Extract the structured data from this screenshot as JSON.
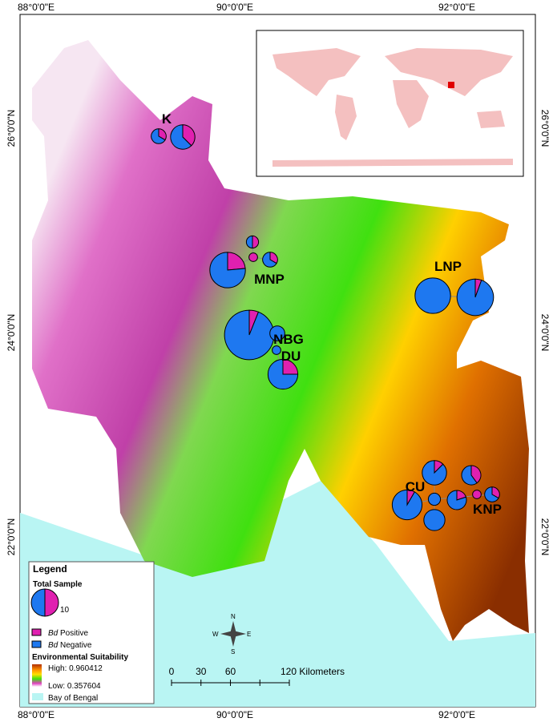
{
  "coordinates": {
    "top": [
      "88°0'0\"E",
      "90°0'0\"E",
      "92°0'0\"E"
    ],
    "bottom": [
      "88°0'0\"E",
      "90°0'0\"E",
      "92°0'0\"E"
    ],
    "left": [
      "26°0'0\"N",
      "24°0'0\"N",
      "22°0'0\"N"
    ],
    "right": [
      "26°0'0\"N",
      "24°0'0\"N",
      "22°0'0\"N"
    ]
  },
  "sites": [
    {
      "label": "K",
      "pies": [
        {
          "positive": 1,
          "negative": 2
        },
        {
          "positive": 3,
          "negative": 5
        }
      ]
    },
    {
      "label": "MNP",
      "pies": [
        {
          "positive": 1,
          "negative": 1
        },
        {
          "positive": 1,
          "negative": 0
        },
        {
          "positive": 1,
          "negative": 2
        },
        {
          "positive": 4,
          "negative": 13
        }
      ]
    },
    {
      "label": "NBG",
      "pies": [
        {
          "positive": 2,
          "negative": 31
        },
        {
          "positive": 0,
          "negative": 3
        },
        {
          "positive": 0,
          "negative": 1
        }
      ]
    },
    {
      "label": "DU",
      "pies": [
        {
          "positive": 3,
          "negative": 9
        }
      ]
    },
    {
      "label": "LNP",
      "pies": [
        {
          "positive": 0,
          "negative": 17
        },
        {
          "positive": 1,
          "negative": 17
        }
      ]
    },
    {
      "label": "CU",
      "pies": [
        {
          "positive": 1,
          "negative": 11
        },
        {
          "positive": 1,
          "negative": 7
        },
        {
          "positive": 0,
          "negative": 2
        },
        {
          "positive": 0,
          "negative": 6
        }
      ]
    },
    {
      "label": "KNP",
      "pies": [
        {
          "positive": 1,
          "negative": 4
        },
        {
          "positive": 2,
          "negative": 3
        },
        {
          "positive": 1,
          "negative": 0
        },
        {
          "positive": 1,
          "negative": 2
        }
      ]
    }
  ],
  "legend": {
    "title": "Legend",
    "total_sample_title": "Total Sample",
    "total_sample_value": 10,
    "positive": {
      "italic": "Bd",
      "text": "Positive"
    },
    "negative": {
      "italic": "Bd",
      "text": "Negative"
    },
    "suitability_title": "Environmental Suitability",
    "high": "High: 0.960412",
    "low": "Low: 0.357604",
    "bay": "Bay of Bengal"
  },
  "scale_bar": {
    "ticks": [
      0,
      30,
      60
    ],
    "label": "120 Kilometers"
  },
  "compass": {
    "n": "N",
    "e": "E",
    "s": "S",
    "w": "W"
  }
}
